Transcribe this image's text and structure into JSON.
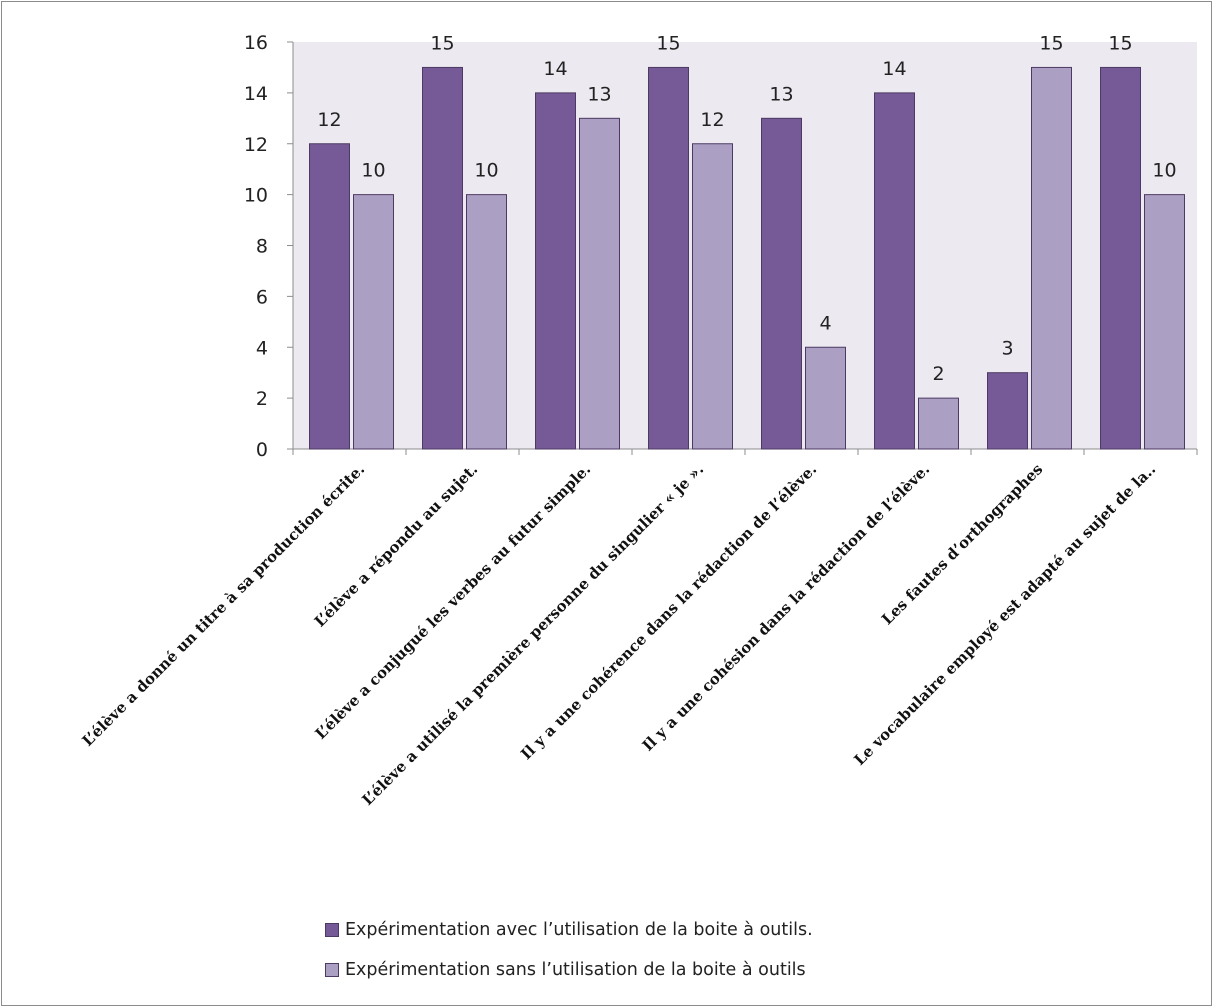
{
  "chart_data": {
    "type": "bar",
    "categories": [
      "L’élève a donné un titre à sa production écrite.",
      "L’élève a répondu au sujet.",
      "L’élève a conjugué les verbes au futur simple.",
      "L’élève a utilisé la première personne du singulier « je ».",
      "Il y a une cohérence dans la rédaction de l’élève.",
      "Il y a une cohésion dans la rédaction de l’élève.",
      "Les fautes d’orthographes",
      "Le vocabulaire employé est adapté au sujet de la.."
    ],
    "series": [
      {
        "name": "Expérimentation avec l’utilisation de la boite à outils.",
        "values": [
          12,
          15,
          14,
          15,
          13,
          14,
          3,
          15
        ],
        "color": "#765a97"
      },
      {
        "name": "Expérimentation sans l’utilisation de la boite à outils",
        "values": [
          10,
          10,
          13,
          12,
          4,
          2,
          15,
          10
        ],
        "color": "#ac9fc4"
      }
    ],
    "y_ticks": [
      "0",
      "2",
      "4",
      "6",
      "8",
      "10",
      "12",
      "14",
      "16"
    ],
    "ylim": [
      0,
      16
    ],
    "grid": false,
    "plot_background": "#ece9f1",
    "legend_position": "bottom"
  }
}
